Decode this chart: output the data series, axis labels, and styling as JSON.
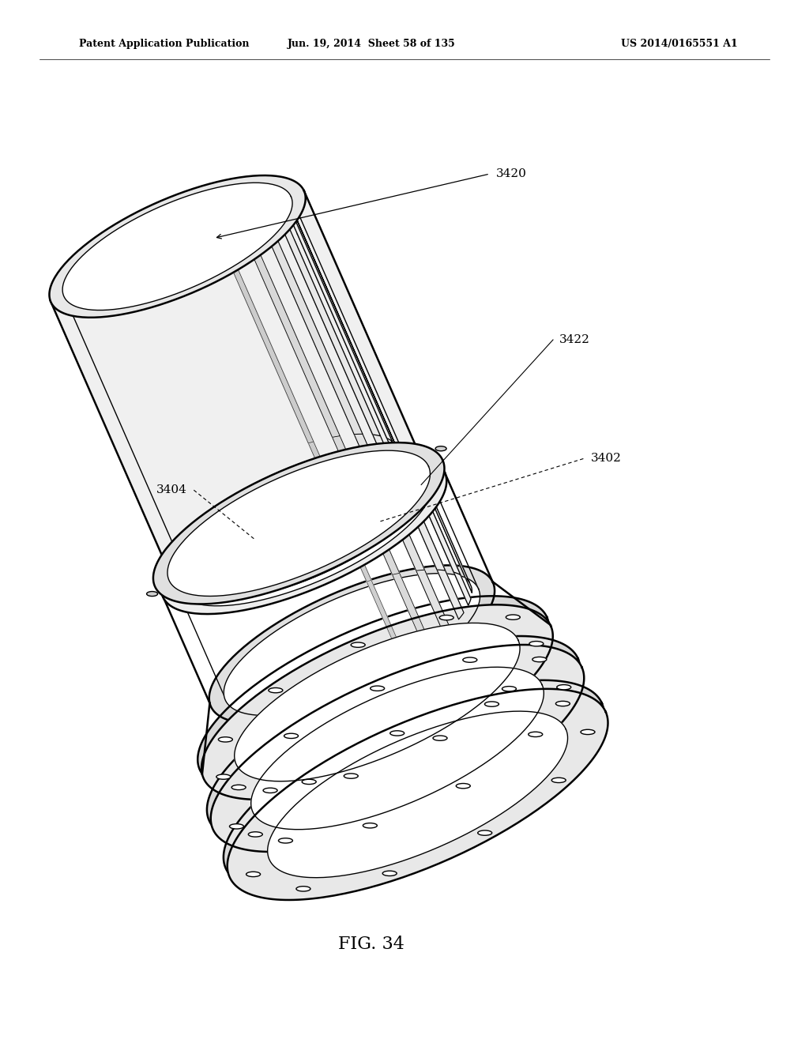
{
  "title_left": "Patent Application Publication",
  "title_mid": "Jun. 19, 2014  Sheet 58 of 135",
  "title_right": "US 2014/0165551 A1",
  "fig_label": "FIG. 34",
  "bg_color": "#ffffff",
  "line_color": "#000000",
  "title_fontsize": 9,
  "label_fontsize": 11,
  "shade_color": "#e8e8e8",
  "shade_color2": "#d8d8d8",
  "shade_color3": "#c8c8c8"
}
